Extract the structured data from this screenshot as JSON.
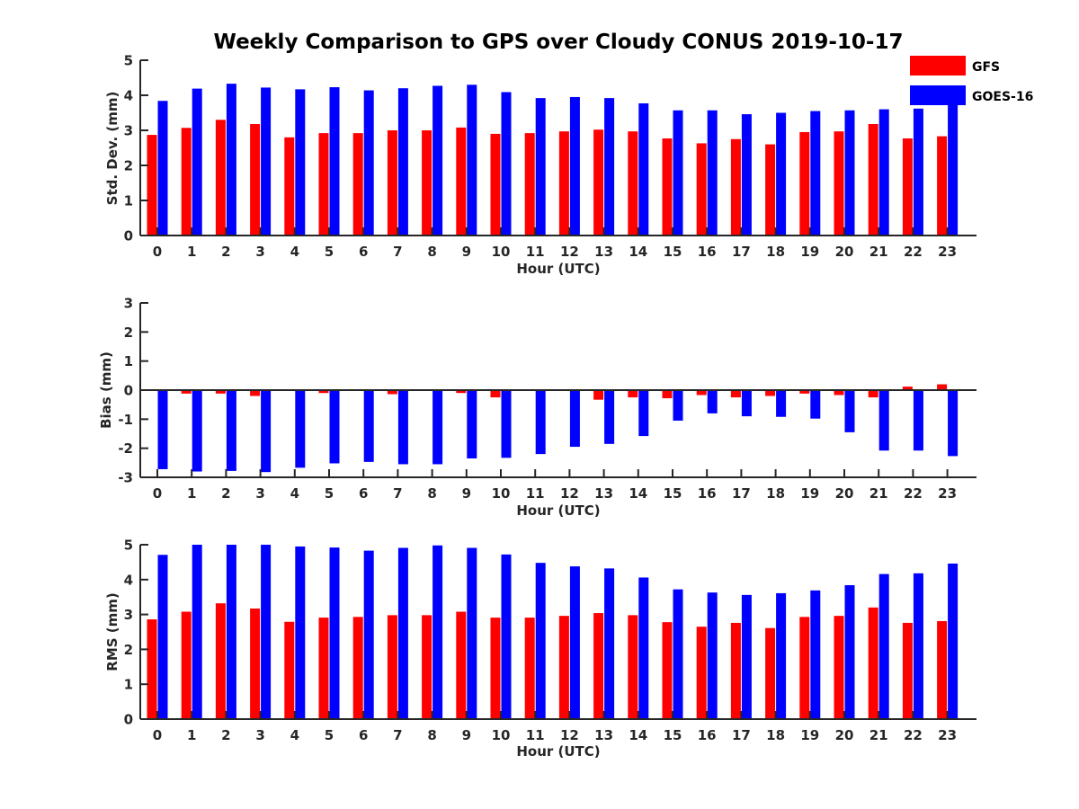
{
  "title": "Weekly Comparison to GPS over Cloudy CONUS 2019-10-17",
  "legend": {
    "placement": "top-right",
    "items": [
      {
        "label": "GFS",
        "color": "#ff0000"
      },
      {
        "label": "GOES-16",
        "color": "#0000ff"
      }
    ]
  },
  "chart_data": [
    {
      "type": "bar",
      "xlabel": "Hour (UTC)",
      "ylabel": "Std. Dev. (mm)",
      "ylim": [
        0,
        5
      ],
      "yticks": [
        0,
        1,
        2,
        3,
        4,
        5
      ],
      "categories": [
        "0",
        "1",
        "2",
        "3",
        "4",
        "5",
        "6",
        "7",
        "8",
        "9",
        "10",
        "11",
        "12",
        "13",
        "14",
        "15",
        "16",
        "17",
        "18",
        "19",
        "20",
        "21",
        "22",
        "23"
      ],
      "series": [
        {
          "name": "GFS",
          "color": "#ff0000",
          "values": [
            2.87,
            3.07,
            3.3,
            3.18,
            2.8,
            2.92,
            2.92,
            3.0,
            3.0,
            3.08,
            2.9,
            2.92,
            2.97,
            3.02,
            2.97,
            2.77,
            2.63,
            2.75,
            2.6,
            2.95,
            2.97,
            3.18,
            2.77,
            2.83
          ]
        },
        {
          "name": "GOES-16",
          "color": "#0000ff",
          "values": [
            3.84,
            4.19,
            4.33,
            4.22,
            4.17,
            4.23,
            4.14,
            4.2,
            4.27,
            4.3,
            4.09,
            3.92,
            3.95,
            3.92,
            3.77,
            3.57,
            3.57,
            3.46,
            3.5,
            3.55,
            3.57,
            3.6,
            3.62,
            4.15
          ]
        }
      ]
    },
    {
      "type": "bar",
      "xlabel": "Hour (UTC)",
      "ylabel": "Bias (mm)",
      "ylim": [
        -3,
        3
      ],
      "yticks": [
        -3,
        -2,
        -1,
        0,
        1,
        2,
        3
      ],
      "categories": [
        "0",
        "1",
        "2",
        "3",
        "4",
        "5",
        "6",
        "7",
        "8",
        "9",
        "10",
        "11",
        "12",
        "13",
        "14",
        "15",
        "16",
        "17",
        "18",
        "19",
        "20",
        "21",
        "22",
        "23"
      ],
      "series": [
        {
          "name": "GFS",
          "color": "#ff0000",
          "values": [
            0.0,
            -0.12,
            -0.12,
            -0.2,
            -0.03,
            -0.1,
            -0.02,
            -0.14,
            -0.03,
            -0.1,
            -0.25,
            0.02,
            0.02,
            -0.33,
            -0.25,
            -0.28,
            -0.17,
            -0.25,
            -0.2,
            -0.12,
            -0.17,
            -0.25,
            0.12,
            0.2
          ]
        },
        {
          "name": "GOES-16",
          "color": "#0000ff",
          "values": [
            -2.72,
            -2.8,
            -2.78,
            -2.82,
            -2.67,
            -2.52,
            -2.47,
            -2.55,
            -2.55,
            -2.35,
            -2.33,
            -2.2,
            -1.95,
            -1.85,
            -1.58,
            -1.05,
            -0.8,
            -0.9,
            -0.92,
            -0.98,
            -1.45,
            -2.08,
            -2.08,
            -2.27
          ]
        }
      ]
    },
    {
      "type": "bar",
      "xlabel": "Hour (UTC)",
      "ylabel": "RMS (mm)",
      "ylim": [
        0,
        5
      ],
      "yticks": [
        0,
        1,
        2,
        3,
        4,
        5
      ],
      "categories": [
        "0",
        "1",
        "2",
        "3",
        "4",
        "5",
        "6",
        "7",
        "8",
        "9",
        "10",
        "11",
        "12",
        "13",
        "14",
        "15",
        "16",
        "17",
        "18",
        "19",
        "20",
        "21",
        "22",
        "23"
      ],
      "series": [
        {
          "name": "GFS",
          "color": "#ff0000",
          "values": [
            2.86,
            3.08,
            3.32,
            3.17,
            2.79,
            2.91,
            2.93,
            2.98,
            2.98,
            3.08,
            2.91,
            2.91,
            2.96,
            3.04,
            2.98,
            2.78,
            2.65,
            2.76,
            2.61,
            2.93,
            2.96,
            3.2,
            2.76,
            2.81
          ]
        },
        {
          "name": "GOES-16",
          "color": "#0000ff",
          "values": [
            4.71,
            5.0,
            5.0,
            5.0,
            4.95,
            4.92,
            4.83,
            4.91,
            4.98,
            4.91,
            4.72,
            4.48,
            4.38,
            4.32,
            4.06,
            3.72,
            3.63,
            3.56,
            3.61,
            3.69,
            3.84,
            4.16,
            4.18,
            4.46
          ]
        }
      ]
    }
  ]
}
